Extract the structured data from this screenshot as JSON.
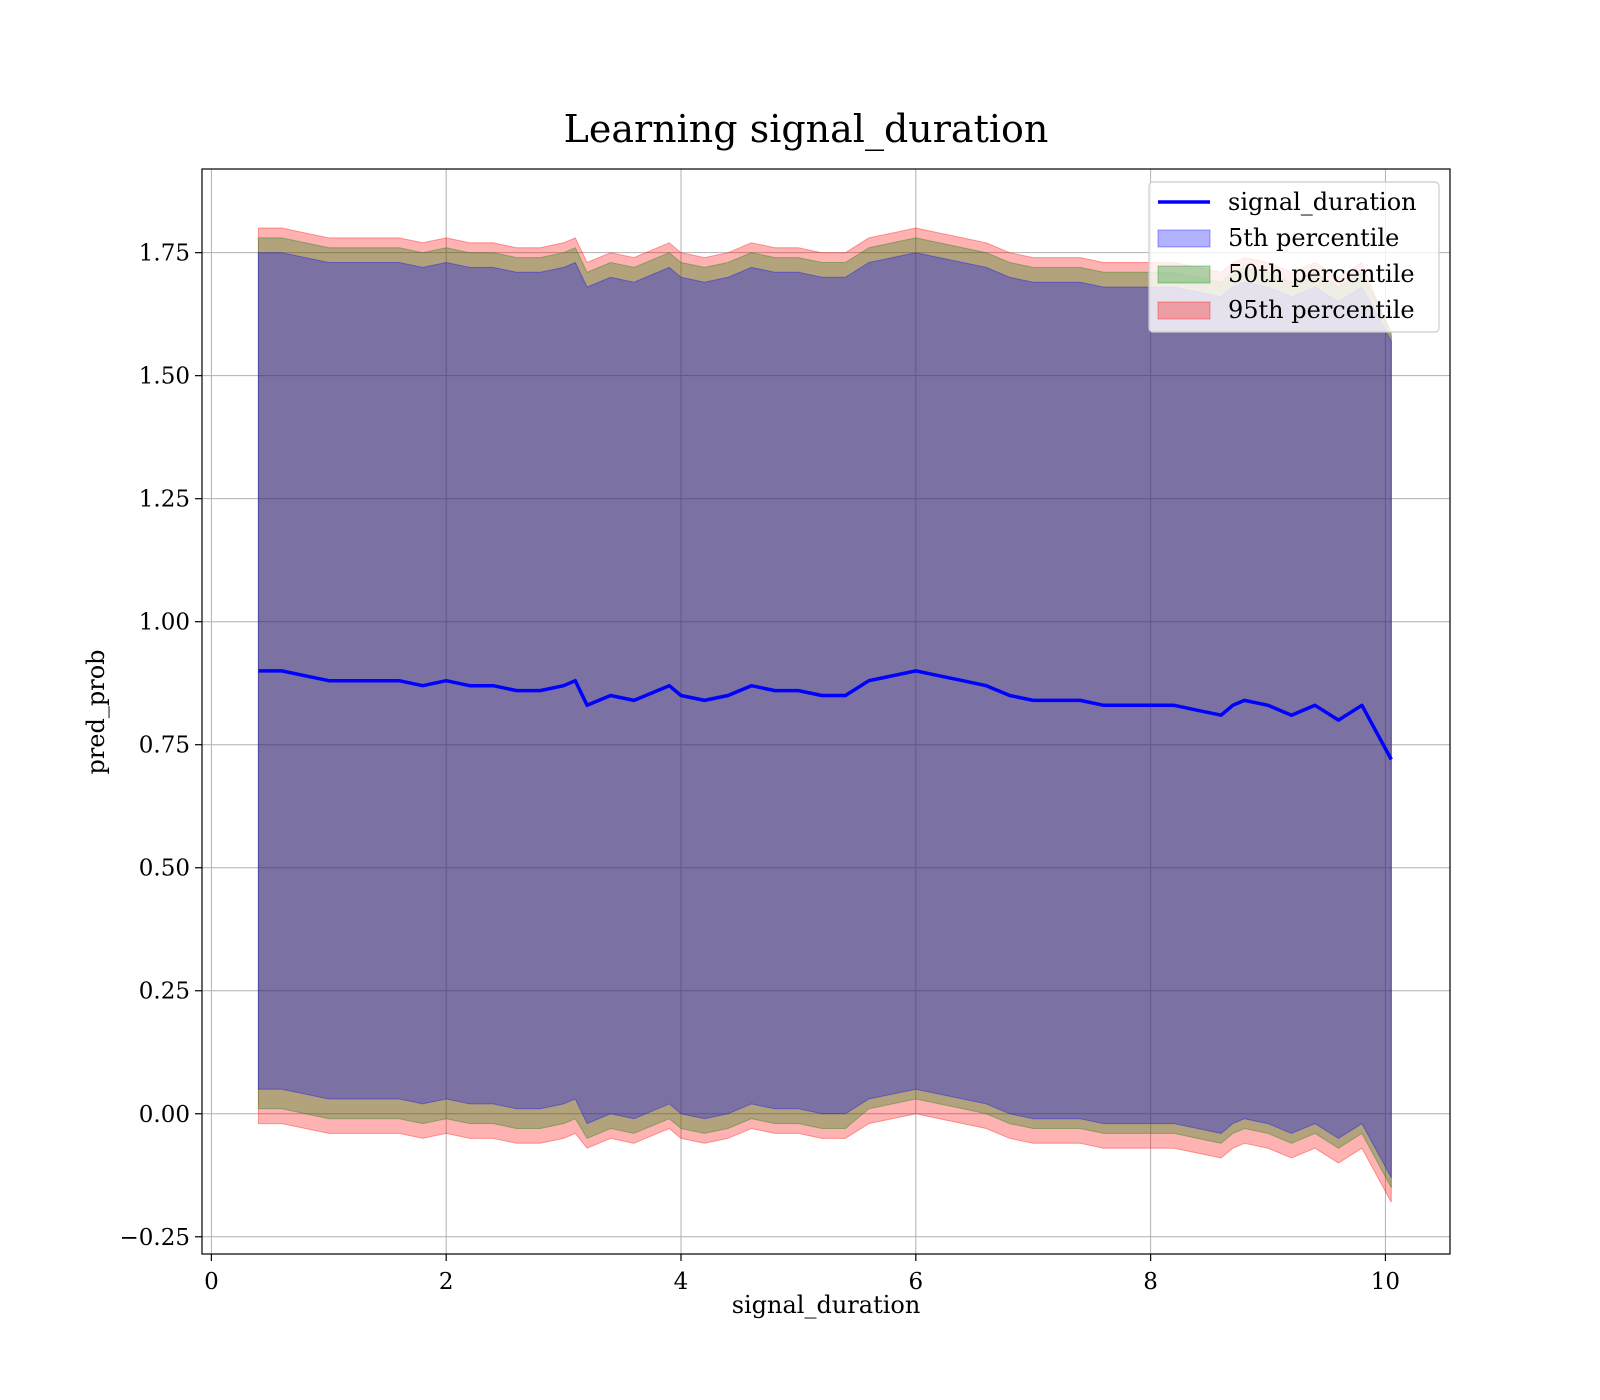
{
  "chart_data": {
    "type": "line",
    "title": "Learning signal_duration",
    "xlabel": "signal_duration",
    "ylabel": "pred_prob",
    "xlim": [
      -0.08,
      10.55
    ],
    "ylim": [
      -0.285,
      1.92
    ],
    "xticks": [
      0,
      2,
      4,
      6,
      8,
      10
    ],
    "xtick_labels": [
      "0",
      "2",
      "4",
      "6",
      "8",
      "10"
    ],
    "yticks": [
      -0.25,
      0,
      0.25,
      0.5,
      0.75,
      1.0,
      1.25,
      1.5,
      1.75
    ],
    "ytick_labels": [
      "−0.25",
      "0.00",
      "0.25",
      "0.50",
      "0.75",
      "1.00",
      "1.25",
      "1.50",
      "1.75"
    ],
    "grid": true,
    "legend_position": "top-right",
    "legend": [
      {
        "label": "signal_duration",
        "kind": "line",
        "color": "#0000ff"
      },
      {
        "label": "5th percentile",
        "kind": "band",
        "color": "#0000ff"
      },
      {
        "label": "50th percentile",
        "kind": "band",
        "color": "#008000"
      },
      {
        "label": "95th percentile",
        "kind": "band",
        "color": "#ff0000"
      }
    ],
    "x": [
      0.4,
      0.6,
      0.8,
      1.0,
      1.2,
      1.4,
      1.6,
      1.8,
      2.0,
      2.2,
      2.4,
      2.6,
      2.8,
      3.0,
      3.1,
      3.2,
      3.4,
      3.6,
      3.8,
      3.9,
      4.0,
      4.2,
      4.4,
      4.6,
      4.8,
      5.0,
      5.2,
      5.4,
      5.6,
      5.8,
      6.0,
      6.2,
      6.4,
      6.6,
      6.8,
      7.0,
      7.2,
      7.4,
      7.6,
      7.8,
      8.0,
      8.2,
      8.4,
      8.6,
      8.7,
      8.8,
      9.0,
      9.2,
      9.4,
      9.6,
      9.8,
      10.05
    ],
    "series": [
      {
        "name": "signal_duration",
        "values": [
          0.9,
          0.9,
          0.89,
          0.88,
          0.88,
          0.88,
          0.88,
          0.87,
          0.88,
          0.87,
          0.87,
          0.86,
          0.86,
          0.87,
          0.88,
          0.83,
          0.85,
          0.84,
          0.86,
          0.87,
          0.85,
          0.84,
          0.85,
          0.87,
          0.86,
          0.86,
          0.85,
          0.85,
          0.88,
          0.89,
          0.9,
          0.89,
          0.88,
          0.87,
          0.85,
          0.84,
          0.84,
          0.84,
          0.83,
          0.83,
          0.83,
          0.83,
          0.82,
          0.81,
          0.83,
          0.84,
          0.83,
          0.81,
          0.83,
          0.8,
          0.83,
          0.72
        ]
      }
    ],
    "bands": [
      {
        "name": "95th percentile",
        "color": "#ff0000",
        "upper": [
          1.8,
          1.8,
          1.79,
          1.78,
          1.78,
          1.78,
          1.78,
          1.77,
          1.78,
          1.77,
          1.77,
          1.76,
          1.76,
          1.77,
          1.78,
          1.73,
          1.75,
          1.74,
          1.76,
          1.77,
          1.75,
          1.74,
          1.75,
          1.77,
          1.76,
          1.76,
          1.75,
          1.75,
          1.78,
          1.79,
          1.8,
          1.79,
          1.78,
          1.77,
          1.75,
          1.74,
          1.74,
          1.74,
          1.73,
          1.73,
          1.73,
          1.73,
          1.72,
          1.71,
          1.73,
          1.74,
          1.73,
          1.71,
          1.73,
          1.7,
          1.73,
          1.58
        ],
        "lower": [
          -0.02,
          -0.02,
          -0.03,
          -0.04,
          -0.04,
          -0.04,
          -0.04,
          -0.05,
          -0.04,
          -0.05,
          -0.05,
          -0.06,
          -0.06,
          -0.05,
          -0.04,
          -0.07,
          -0.05,
          -0.06,
          -0.04,
          -0.03,
          -0.05,
          -0.06,
          -0.05,
          -0.03,
          -0.04,
          -0.04,
          -0.05,
          -0.05,
          -0.02,
          -0.01,
          0.0,
          -0.01,
          -0.02,
          -0.03,
          -0.05,
          -0.06,
          -0.06,
          -0.06,
          -0.07,
          -0.07,
          -0.07,
          -0.07,
          -0.08,
          -0.09,
          -0.07,
          -0.06,
          -0.07,
          -0.09,
          -0.07,
          -0.1,
          -0.07,
          -0.18
        ]
      },
      {
        "name": "50th percentile",
        "color": "#008000",
        "upper": [
          1.78,
          1.78,
          1.77,
          1.76,
          1.76,
          1.76,
          1.76,
          1.75,
          1.76,
          1.75,
          1.75,
          1.74,
          1.74,
          1.75,
          1.76,
          1.71,
          1.73,
          1.72,
          1.74,
          1.75,
          1.73,
          1.72,
          1.73,
          1.75,
          1.74,
          1.74,
          1.73,
          1.73,
          1.76,
          1.77,
          1.78,
          1.77,
          1.76,
          1.75,
          1.73,
          1.72,
          1.72,
          1.72,
          1.71,
          1.71,
          1.71,
          1.71,
          1.7,
          1.69,
          1.71,
          1.72,
          1.71,
          1.69,
          1.71,
          1.68,
          1.71,
          1.59
        ],
        "lower": [
          0.01,
          0.01,
          0.0,
          -0.01,
          -0.01,
          -0.01,
          -0.01,
          -0.02,
          -0.01,
          -0.02,
          -0.02,
          -0.03,
          -0.03,
          -0.02,
          -0.01,
          -0.05,
          -0.03,
          -0.04,
          -0.02,
          -0.01,
          -0.03,
          -0.04,
          -0.03,
          -0.01,
          -0.02,
          -0.02,
          -0.03,
          -0.03,
          0.01,
          0.02,
          0.03,
          0.02,
          0.01,
          0.0,
          -0.02,
          -0.03,
          -0.03,
          -0.03,
          -0.04,
          -0.04,
          -0.04,
          -0.04,
          -0.05,
          -0.06,
          -0.04,
          -0.03,
          -0.04,
          -0.06,
          -0.04,
          -0.07,
          -0.04,
          -0.15
        ]
      },
      {
        "name": "5th percentile",
        "color": "#0000ff",
        "upper": [
          1.75,
          1.75,
          1.74,
          1.73,
          1.73,
          1.73,
          1.73,
          1.72,
          1.73,
          1.72,
          1.72,
          1.71,
          1.71,
          1.72,
          1.73,
          1.68,
          1.7,
          1.69,
          1.71,
          1.72,
          1.7,
          1.69,
          1.7,
          1.72,
          1.71,
          1.71,
          1.7,
          1.7,
          1.73,
          1.74,
          1.75,
          1.74,
          1.73,
          1.72,
          1.7,
          1.69,
          1.69,
          1.69,
          1.68,
          1.68,
          1.68,
          1.68,
          1.67,
          1.66,
          1.68,
          1.69,
          1.68,
          1.66,
          1.68,
          1.65,
          1.68,
          1.57
        ],
        "lower": [
          0.05,
          0.05,
          0.04,
          0.03,
          0.03,
          0.03,
          0.03,
          0.02,
          0.03,
          0.02,
          0.02,
          0.01,
          0.01,
          0.02,
          0.03,
          -0.02,
          0.0,
          -0.01,
          0.01,
          0.02,
          0.0,
          -0.01,
          0.0,
          0.02,
          0.01,
          0.01,
          0.0,
          0.0,
          0.03,
          0.04,
          0.05,
          0.04,
          0.03,
          0.02,
          0.0,
          -0.01,
          -0.01,
          -0.01,
          -0.02,
          -0.02,
          -0.02,
          -0.02,
          -0.03,
          -0.04,
          -0.02,
          -0.01,
          -0.02,
          -0.04,
          -0.02,
          -0.05,
          -0.02,
          -0.13
        ]
      }
    ]
  }
}
